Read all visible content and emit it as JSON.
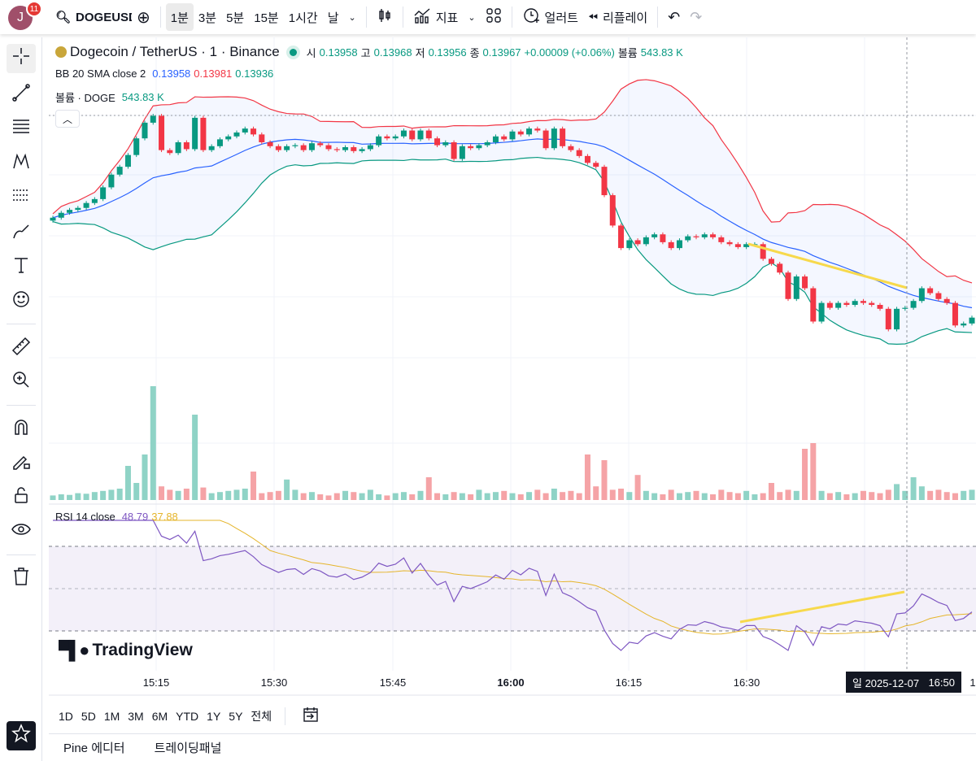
{
  "topbar": {
    "avatar_initial": "J",
    "notifications": "11",
    "symbol": "DOGEUSD",
    "intervals": [
      "1분",
      "3분",
      "5분",
      "15분",
      "1시간",
      "날"
    ],
    "active_interval": "1분",
    "indicators": "지표",
    "alert": "얼러트",
    "replay": "리플레이"
  },
  "legend": {
    "title": "Dogecoin / TetherUS · 1 · Binance",
    "o_label": "시",
    "o": "0.13958",
    "h_label": "고",
    "h": "0.13968",
    "l_label": "저",
    "l": "0.13956",
    "c_label": "종",
    "c": "0.13967",
    "change": "+0.00009 (+0.06%)",
    "vol_label": "볼륨",
    "vol": "543.83 K",
    "bb_label": "BB 20 SMA close 2",
    "bb_mid": "0.13958",
    "bb_upper": "0.13981",
    "bb_lower": "0.13936",
    "volume_label": "볼륨 · DOGE",
    "volume_value": "543.83 K",
    "rsi_label": "RSI 14 close",
    "rsi_value": "48.79",
    "rsi_ma": "37.88"
  },
  "colors": {
    "up": "#089981",
    "down": "#f23645",
    "bb_mid": "#2962ff",
    "bb_upper": "#f23645",
    "bb_lower": "#089981",
    "rsi": "#7e57c2",
    "rsi_ma": "#e5b52b"
  },
  "xaxis": {
    "labels": [
      "15:15",
      "15:30",
      "15:45",
      "16:00",
      "16:15",
      "16:30"
    ],
    "crosshair_day": "일 2025-12-07",
    "crosshair_time": "16:50",
    "edge": "1"
  },
  "range_buttons": [
    "1D",
    "5D",
    "1M",
    "3M",
    "6M",
    "YTD",
    "1Y",
    "5Y",
    "전체"
  ],
  "bottom_tabs": [
    "Pine 에디터",
    "트레이딩패널"
  ],
  "brand": "TradingView",
  "chart_data": {
    "type": "candlestick",
    "closes": [
      0.14047,
      0.14052,
      0.14055,
      0.14057,
      0.14062,
      0.14066,
      0.14078,
      0.14091,
      0.14099,
      0.14111,
      0.14128,
      0.14144,
      0.14151,
      0.14116,
      0.14113,
      0.14124,
      0.14117,
      0.14149,
      0.14116,
      0.1412,
      0.14127,
      0.1413,
      0.14134,
      0.14138,
      0.14132,
      0.14124,
      0.1412,
      0.14116,
      0.1412,
      0.14121,
      0.14116,
      0.14123,
      0.14121,
      0.14117,
      0.14116,
      0.14119,
      0.14115,
      0.14117,
      0.14121,
      0.1413,
      0.14128,
      0.1413,
      0.14136,
      0.14127,
      0.14136,
      0.14128,
      0.14121,
      0.14124,
      0.14107,
      0.1412,
      0.14118,
      0.14121,
      0.14124,
      0.1413,
      0.14127,
      0.14135,
      0.14132,
      0.14138,
      0.14136,
      0.14118,
      0.14138,
      0.1412,
      0.14116,
      0.1411,
      0.14103,
      0.14099,
      0.1407,
      0.14039,
      0.14016,
      0.14024,
      0.1402,
      0.14027,
      0.1403,
      0.14022,
      0.14016,
      0.14024,
      0.14028,
      0.14027,
      0.1403,
      0.14027,
      0.14022,
      0.1402,
      0.14017,
      0.1402,
      0.1402,
      0.14005,
      0.14,
      0.13991,
      0.13964,
      0.13987,
      0.13975,
      0.13941,
      0.1396,
      0.13955,
      0.1396,
      0.13958,
      0.13962,
      0.1396,
      0.13958,
      0.13954,
      0.13933,
      0.13954,
      0.13955,
      0.13962,
      0.13975,
      0.1397,
      0.13964,
      0.1396,
      0.13937,
      0.13939,
      0.13945
    ],
    "volumes_k": [
      40,
      50,
      45,
      60,
      55,
      70,
      80,
      90,
      100,
      300,
      150,
      400,
      1000,
      120,
      90,
      80,
      100,
      750,
      110,
      60,
      70,
      80,
      90,
      100,
      250,
      60,
      70,
      80,
      180,
      90,
      60,
      70,
      50,
      40,
      60,
      80,
      70,
      60,
      90,
      50,
      40,
      60,
      70,
      50,
      80,
      200,
      60,
      50,
      70,
      60,
      50,
      90,
      60,
      70,
      80,
      60,
      50,
      70,
      90,
      60,
      100,
      70,
      80,
      60,
      400,
      120,
      350,
      90,
      100,
      70,
      220,
      80,
      60,
      50,
      90,
      60,
      70,
      80,
      60,
      50,
      90,
      70,
      60,
      80,
      50,
      60,
      150,
      70,
      90,
      80,
      450,
      500,
      80,
      60,
      70,
      50,
      60,
      80,
      70,
      60,
      90,
      140,
      80,
      200,
      120,
      80,
      90,
      70,
      60,
      80,
      90
    ]
  }
}
